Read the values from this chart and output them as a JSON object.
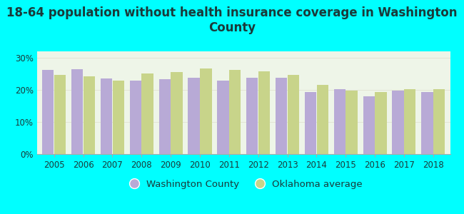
{
  "title": "18-64 population without health insurance coverage in Washington\nCounty",
  "years": [
    2005,
    2006,
    2007,
    2008,
    2009,
    2010,
    2011,
    2012,
    2013,
    2014,
    2015,
    2016,
    2017,
    2018
  ],
  "washington_county": [
    26.3,
    26.5,
    23.5,
    22.9,
    23.4,
    23.8,
    22.9,
    23.7,
    23.8,
    19.4,
    20.2,
    18.1,
    19.8,
    19.4
  ],
  "oklahoma_avg": [
    24.7,
    24.3,
    22.8,
    25.2,
    25.6,
    26.7,
    26.3,
    25.7,
    24.7,
    21.6,
    19.7,
    19.3,
    20.2,
    20.2
  ],
  "bar_color_wc": "#b8aad6",
  "bar_color_ok": "#c8d48a",
  "background_color": "#00ffff",
  "plot_bg_color": "#eef5e8",
  "ylim": [
    0,
    32
  ],
  "yticks": [
    0,
    10,
    20,
    30
  ],
  "ytick_labels": [
    "0%",
    "10%",
    "20%",
    "30%"
  ],
  "legend_label_wc": "Washington County",
  "legend_label_ok": "Oklahoma average",
  "title_fontsize": 12,
  "tick_fontsize": 8.5,
  "legend_fontsize": 9.5,
  "title_color": "#1a3a3a"
}
